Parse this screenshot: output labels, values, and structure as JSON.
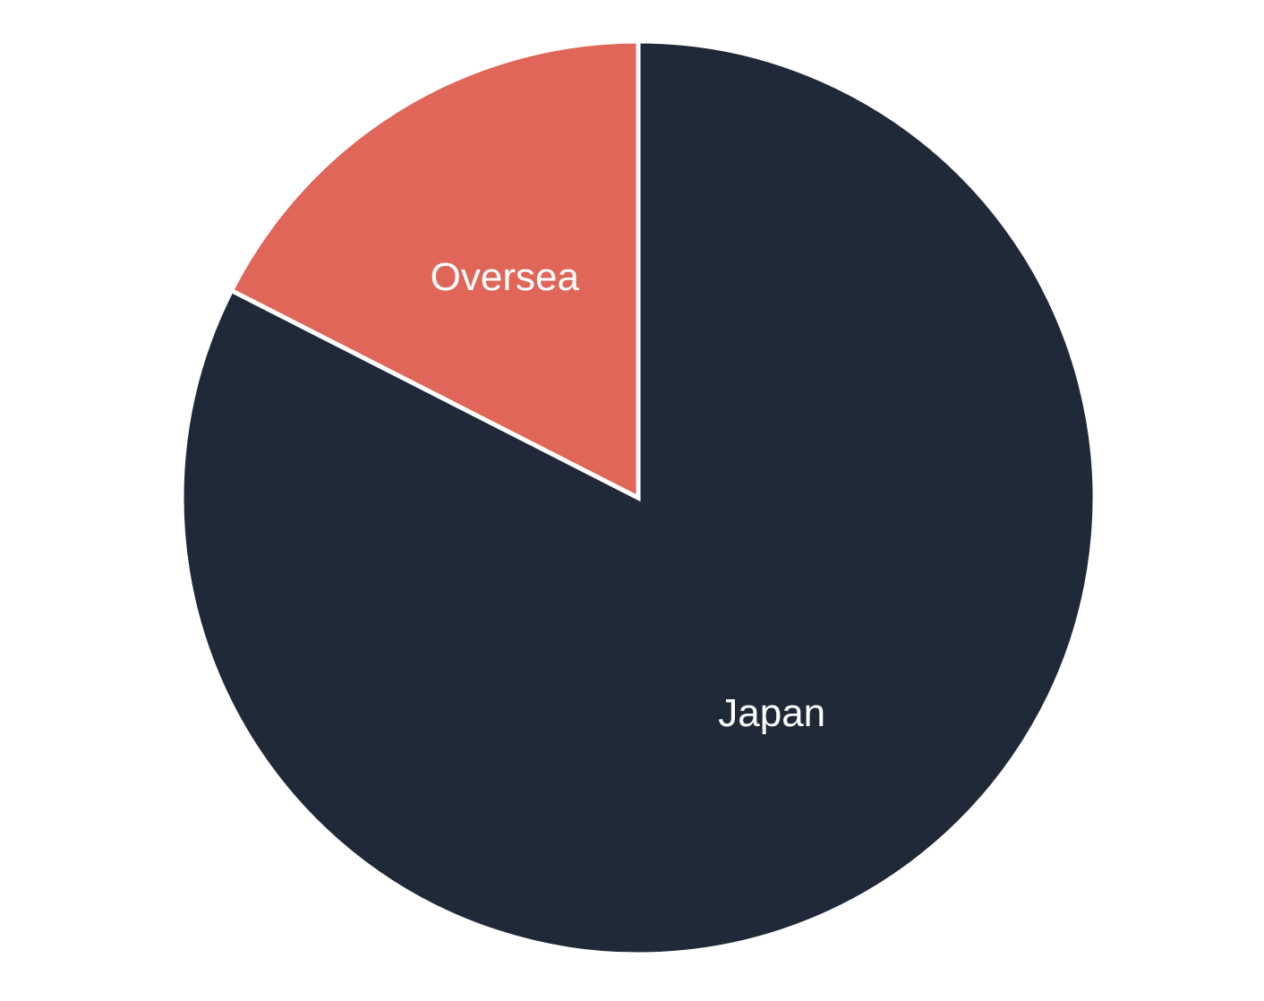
{
  "chart_data": {
    "type": "pie",
    "slices": [
      {
        "label": "Japan",
        "value": 82.5,
        "color": "#1F2938"
      },
      {
        "label": "Oversea",
        "value": 17.5,
        "color": "#DF6658"
      }
    ],
    "title": "",
    "legend": "none",
    "labels_inside": true,
    "slice_border_color": "#ffffff"
  }
}
